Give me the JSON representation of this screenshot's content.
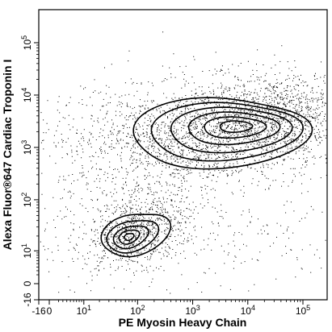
{
  "chart_data": {
    "type": "contour",
    "xlabel": "PE Myosin Heavy Chain",
    "ylabel": "Alexa Fluor®647 Cardiac Troponin I",
    "x_axis": {
      "scale": "biexponential",
      "range": [
        -16,
        300000
      ],
      "ticks": [
        {
          "value": -16,
          "label": "-16"
        },
        {
          "value": 0,
          "label": "0"
        },
        {
          "value": 10,
          "label": "10",
          "sup": "1"
        },
        {
          "value": 100,
          "label": "10",
          "sup": "2"
        },
        {
          "value": 1000,
          "label": "10",
          "sup": "3"
        },
        {
          "value": 10000,
          "label": "10",
          "sup": "4"
        },
        {
          "value": 100000,
          "label": "10",
          "sup": "5"
        }
      ]
    },
    "y_axis": {
      "scale": "biexponential",
      "range": [
        -16,
        300000
      ],
      "ticks": [
        {
          "value": -16,
          "label": "-16"
        },
        {
          "value": 0,
          "label": "0"
        },
        {
          "value": 10,
          "label": "10",
          "sup": "1"
        },
        {
          "value": 100,
          "label": "10",
          "sup": "2"
        },
        {
          "value": 1000,
          "label": "10",
          "sup": "3"
        },
        {
          "value": 10000,
          "label": "10",
          "sup": "4"
        },
        {
          "value": 100000,
          "label": "10",
          "sup": "5"
        }
      ]
    },
    "populations": [
      {
        "center": [
          3500,
          2500
        ],
        "x_range": [
          70,
          60000
        ],
        "y_range": [
          300,
          12000
        ],
        "contour_levels": 6
      },
      {
        "center": [
          70,
          20
        ],
        "x_range": [
          15,
          200
        ],
        "y_range": [
          3,
          60
        ],
        "contour_levels": 5
      }
    ],
    "grid": false,
    "legend": "none"
  }
}
